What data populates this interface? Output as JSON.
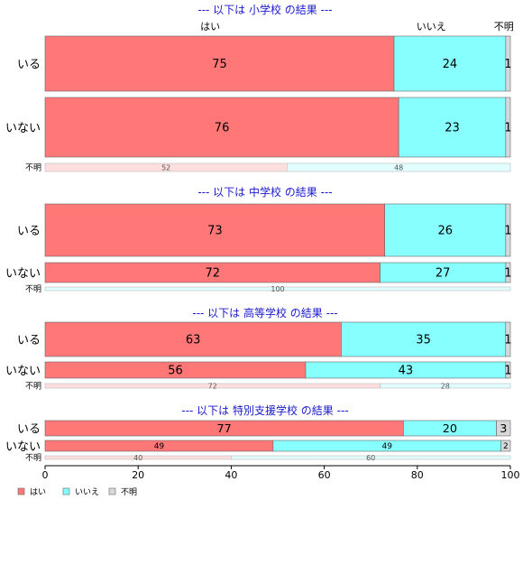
{
  "chart_data": {
    "type": "bar",
    "orientation": "horizontal",
    "stacked": true,
    "normalized": true,
    "category_headers": [
      "はい",
      "いいえ",
      "不明"
    ],
    "legend": {
      "placement": "bottom-left",
      "items": [
        {
          "label": "はい",
          "color": "#ff7777"
        },
        {
          "label": "いいえ",
          "color": "#88ffff"
        },
        {
          "label": "不明",
          "color": "#d8d8d8"
        }
      ]
    },
    "xlim": [
      0,
      100
    ],
    "xticks": [
      0,
      20,
      40,
      60,
      80,
      100
    ],
    "panels": [
      {
        "title": "--- 以下は 小学校 の結果 ---",
        "rows": [
          {
            "label": "いる",
            "values": [
              75,
              24,
              1
            ]
          },
          {
            "label": "いない",
            "values": [
              76,
              23,
              1
            ]
          },
          {
            "label": "不明",
            "values": [
              52,
              48,
              0
            ],
            "faded": true
          }
        ]
      },
      {
        "title": "--- 以下は 中学校 の結果 ---",
        "rows": [
          {
            "label": "いる",
            "values": [
              73,
              26,
              1
            ]
          },
          {
            "label": "いない",
            "values": [
              72,
              27,
              1
            ]
          },
          {
            "label": "不明",
            "values": [
              0,
              100,
              0
            ],
            "faded": true
          }
        ]
      },
      {
        "title": "--- 以下は 高等学校 の結果 ---",
        "rows": [
          {
            "label": "いる",
            "values": [
              63,
              35,
              1
            ]
          },
          {
            "label": "いない",
            "values": [
              56,
              43,
              1
            ]
          },
          {
            "label": "不明",
            "values": [
              72,
              28,
              0
            ],
            "faded": true
          }
        ]
      },
      {
        "title": "--- 以下は 特別支援学校 の結果 ---",
        "rows": [
          {
            "label": "いる",
            "values": [
              77,
              20,
              3
            ]
          },
          {
            "label": "いない",
            "values": [
              49,
              49,
              2
            ]
          },
          {
            "label": "不明",
            "values": [
              40,
              60,
              0
            ],
            "faded": true
          }
        ]
      }
    ]
  }
}
